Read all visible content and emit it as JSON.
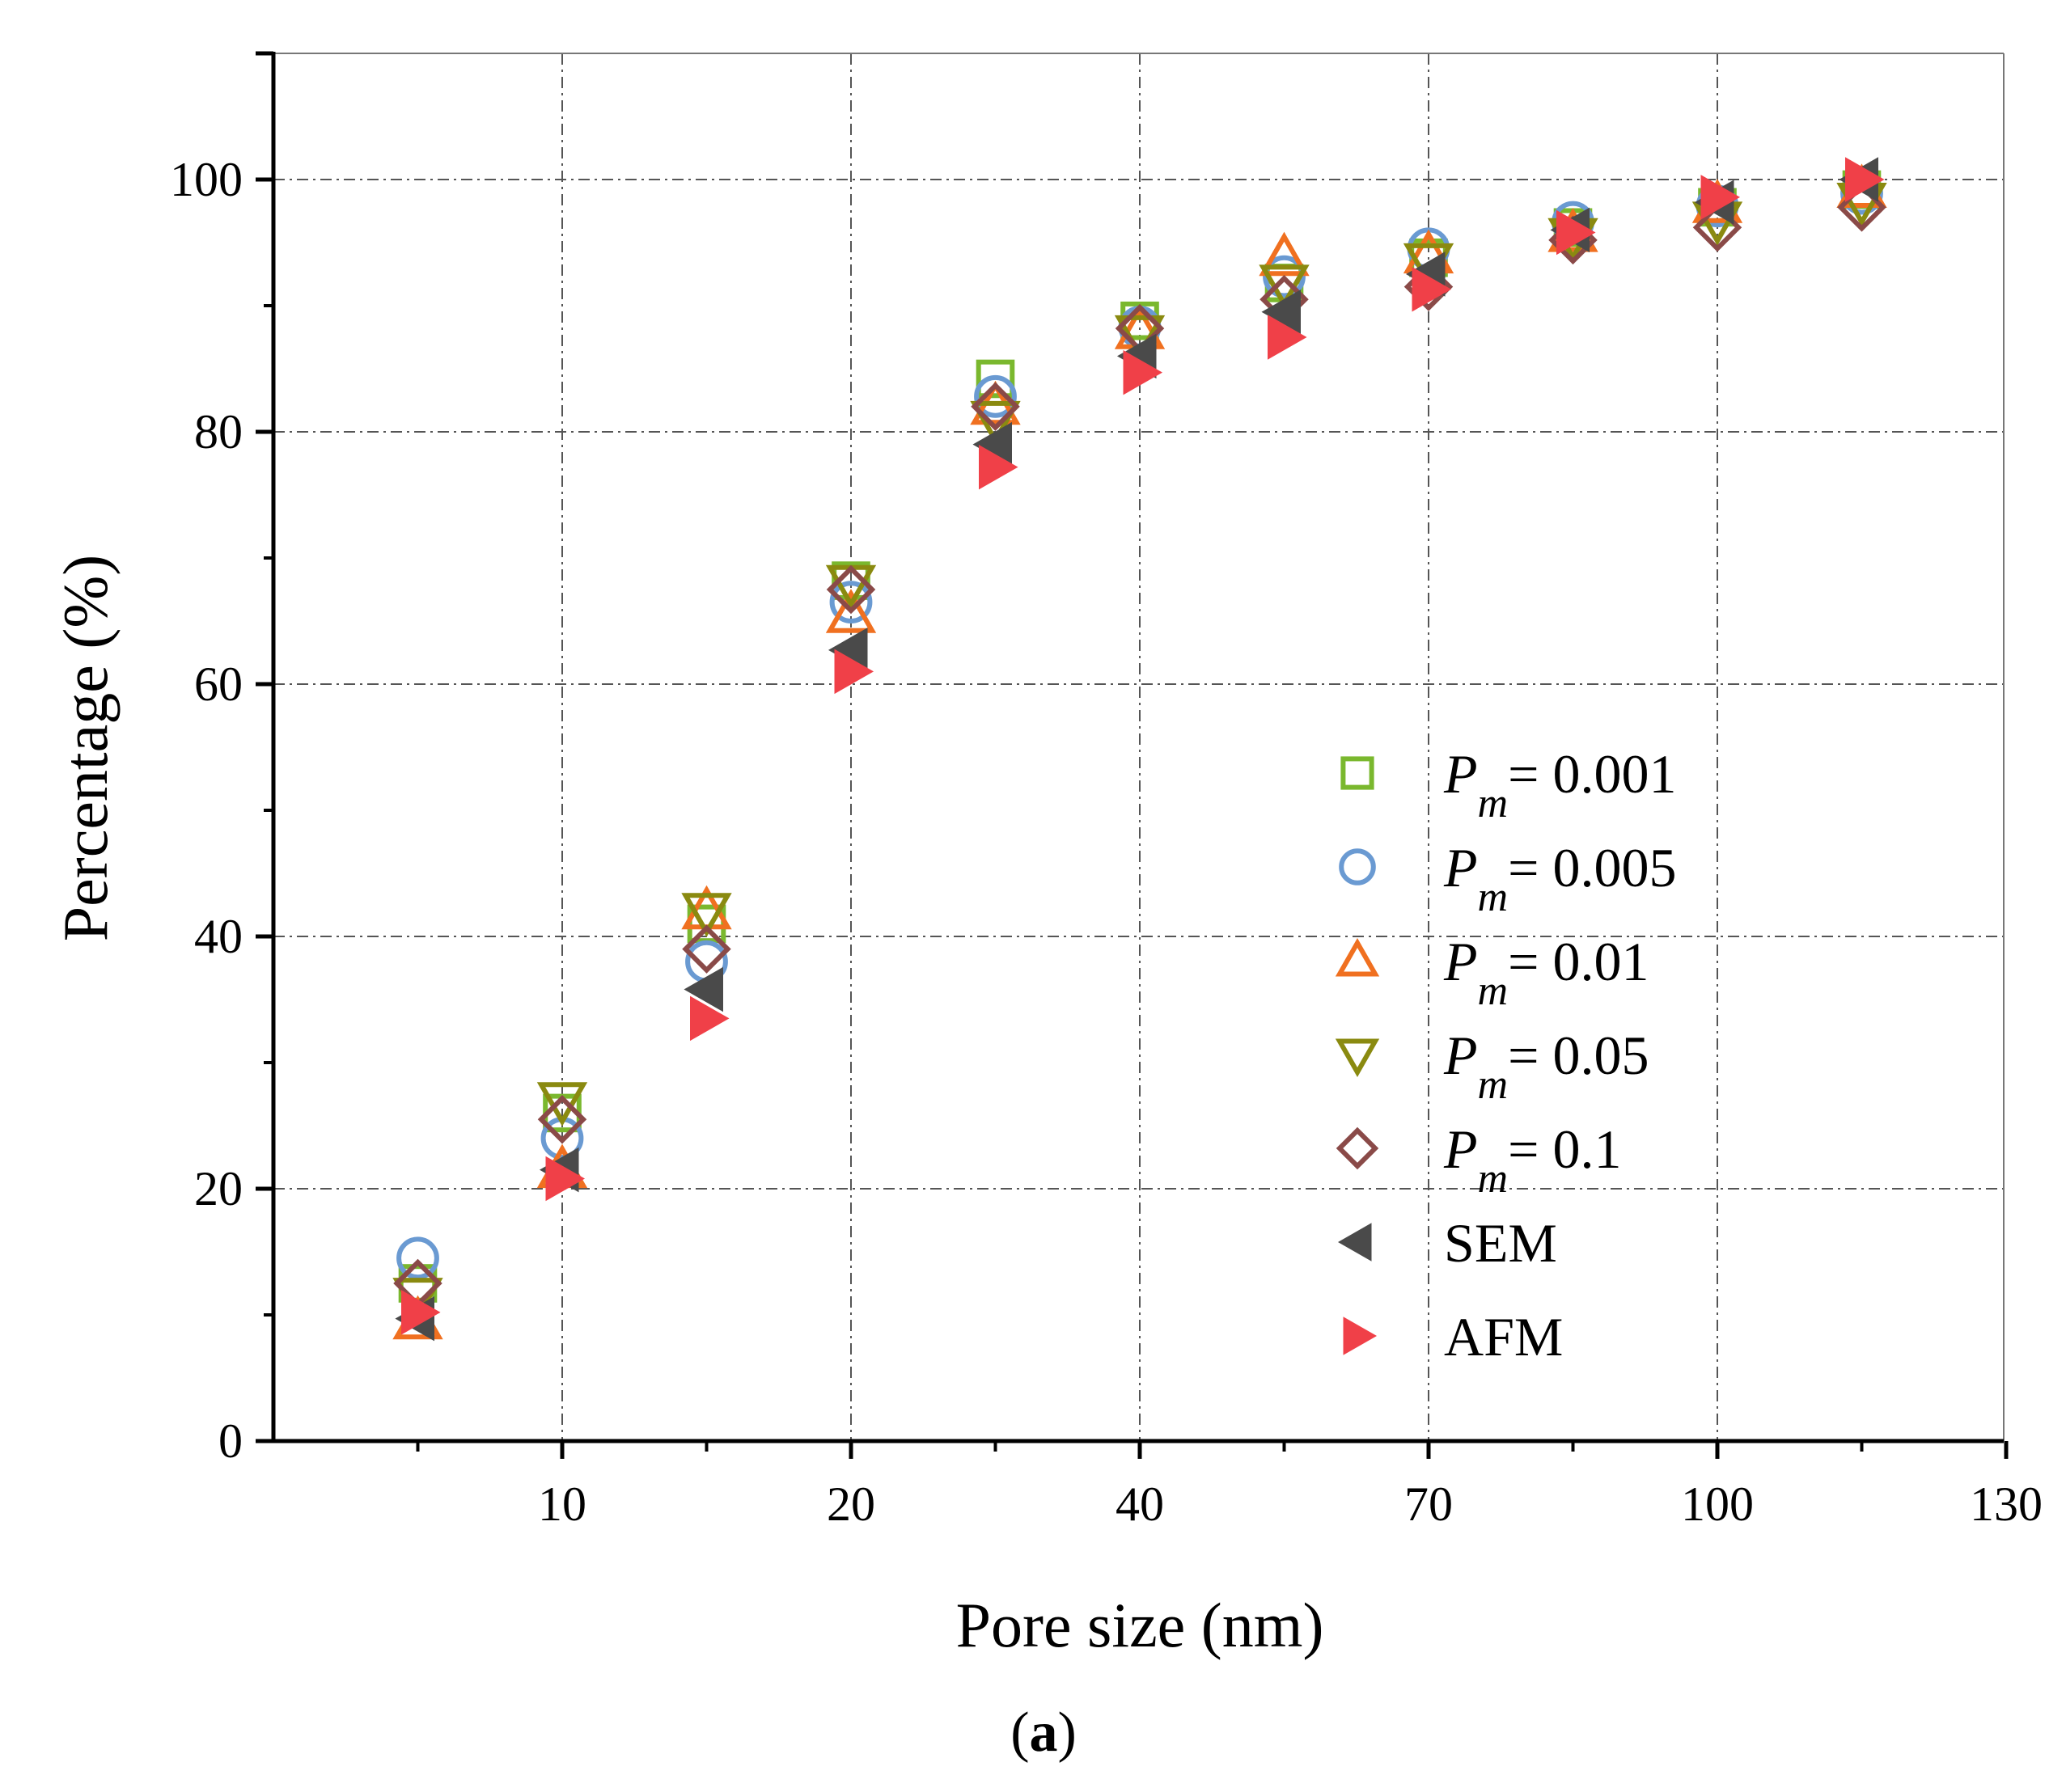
{
  "chart_data": {
    "type": "scatter",
    "x_mode": "category",
    "categories": [
      "5",
      "10",
      "15",
      "20",
      "30",
      "40",
      "50",
      "70",
      "85",
      "100",
      "115"
    ],
    "tick_labels_x": [
      "10",
      "20",
      "40",
      "70",
      "100",
      "130"
    ],
    "tick_labels_y": [
      "0",
      "20",
      "40",
      "60",
      "80",
      "100"
    ],
    "ylim": [
      0,
      110
    ],
    "xlabel": "Pore size (nm)",
    "ylabel": "Percentage (%)",
    "caption": "(a)",
    "caption_letter": "a",
    "grid": true,
    "legend_position": "center-right",
    "legend_symbol": "P",
    "legend_subscript": "m",
    "series": [
      {
        "name": "0.001",
        "values": [
          12.5,
          26.0,
          41.0,
          68.2,
          84.2,
          88.8,
          91.8,
          93.8,
          96.2,
          97.8,
          99.2
        ]
      },
      {
        "name": "0.005",
        "values": [
          14.5,
          24.0,
          38.0,
          66.5,
          82.8,
          88.3,
          92.3,
          94.5,
          96.6,
          97.9,
          98.9
        ]
      },
      {
        "name": "0.01",
        "values": [
          9.5,
          21.5,
          42.0,
          65.5,
          82.0,
          88.0,
          93.8,
          94.0,
          95.7,
          98.0,
          99.2
        ]
      },
      {
        "name": "0.05",
        "values": [
          11.5,
          27.0,
          42.0,
          68.0,
          81.0,
          87.8,
          91.8,
          93.5,
          95.5,
          96.8,
          98.3
        ]
      },
      {
        "name": "0.1",
        "values": [
          12.5,
          25.5,
          39.0,
          67.5,
          82.0,
          88.2,
          90.5,
          91.5,
          95.2,
          96.2,
          97.8
        ]
      },
      {
        "name": "SEM",
        "values": [
          9.7,
          21.5,
          35.8,
          62.7,
          79.0,
          86.0,
          89.5,
          92.5,
          96.0,
          98.2,
          100.0
        ]
      },
      {
        "name": "AFM",
        "values": [
          10.2,
          20.8,
          33.5,
          61.0,
          77.2,
          84.7,
          87.5,
          91.3,
          95.8,
          98.6,
          100.0
        ]
      }
    ],
    "series_colors": [
      "#7ab82e",
      "#6a9ad2",
      "#f07020",
      "#8a8a10",
      "#8a4a48",
      "#4a4a4a",
      "#f04048"
    ],
    "series_markers": [
      "square",
      "circle",
      "triangle-up",
      "triangle-down",
      "diamond",
      "triangle-left",
      "triangle-right"
    ]
  }
}
